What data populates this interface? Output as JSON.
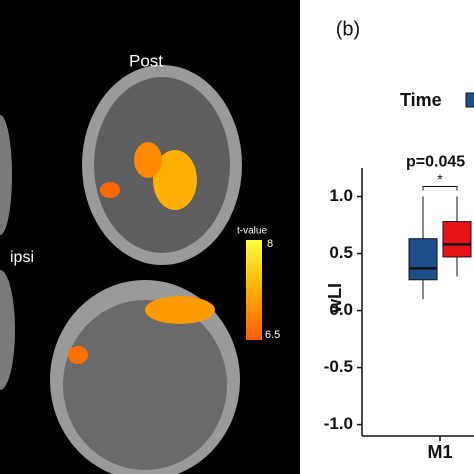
{
  "panel_a": {
    "labels": [
      "Post",
      "ipsi"
    ],
    "colorbar": {
      "title": "t-value",
      "ticks": [
        "8",
        "6.5"
      ]
    }
  },
  "chart_data": {
    "type": "boxplot",
    "panel_label": "(b)",
    "y_label": "wLI",
    "legend_title": "Time",
    "categories": [
      "M1"
    ],
    "series": [
      {
        "color": "#1f4e8c",
        "min": 0.1,
        "q1": 0.27,
        "median": 0.37,
        "q3": 0.63,
        "max": 1.0
      },
      {
        "color": "#e8141a",
        "min": 0.3,
        "q1": 0.47,
        "median": 0.58,
        "q3": 0.78,
        "max": 1.0
      }
    ],
    "annotation": {
      "text": "p=0.045",
      "star": "*"
    },
    "ylim": [
      -1.1,
      1.25
    ],
    "yticks": [
      {
        "value": 1,
        "label": "1.0"
      },
      {
        "value": 0.5,
        "label": "0.5"
      },
      {
        "value": 0,
        "label": "0.0"
      },
      {
        "value": -0.5,
        "label": "-0.5"
      },
      {
        "value": -1,
        "label": "-1.0"
      }
    ]
  }
}
